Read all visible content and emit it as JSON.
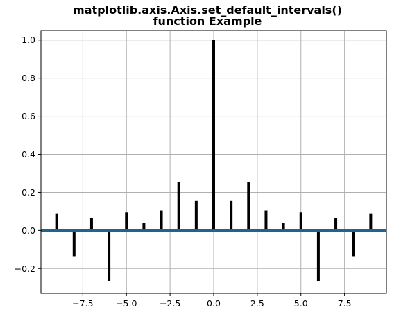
{
  "chart_data": {
    "type": "bar",
    "title_lines": [
      "matplotlib.axis.Axis.set_default_intervals()",
      "function Example"
    ],
    "xlabel": "",
    "ylabel": "",
    "xlim": [
      -9.9,
      9.9
    ],
    "ylim": [
      -0.33,
      1.05
    ],
    "grid": true,
    "x_ticks": [
      -7.5,
      -5.0,
      -2.5,
      0.0,
      2.5,
      5.0,
      7.5
    ],
    "x_tick_labels": [
      "−7.5",
      "−5.0",
      "−2.5",
      "0.0",
      "2.5",
      "5.0",
      "7.5"
    ],
    "y_ticks": [
      -0.2,
      0.0,
      0.2,
      0.4,
      0.6,
      0.8,
      1.0
    ],
    "y_tick_labels": [
      "−0.2",
      "0.0",
      "0.2",
      "0.4",
      "0.6",
      "0.8",
      "1.0"
    ],
    "x": [
      -9,
      -8,
      -7,
      -6,
      -5,
      -4,
      -3,
      -2,
      -1,
      0,
      1,
      2,
      3,
      4,
      5,
      6,
      7,
      8,
      9
    ],
    "values": [
      0.09,
      -0.135,
      0.065,
      -0.265,
      0.095,
      0.04,
      0.105,
      0.255,
      0.155,
      1.0,
      0.155,
      0.255,
      0.105,
      0.04,
      0.095,
      -0.265,
      0.065,
      -0.135,
      0.09
    ],
    "bar_color": "#000000",
    "baseline_value": 0.0,
    "baseline_color": "#1f6391",
    "grid_color": "#b0b0b0"
  }
}
